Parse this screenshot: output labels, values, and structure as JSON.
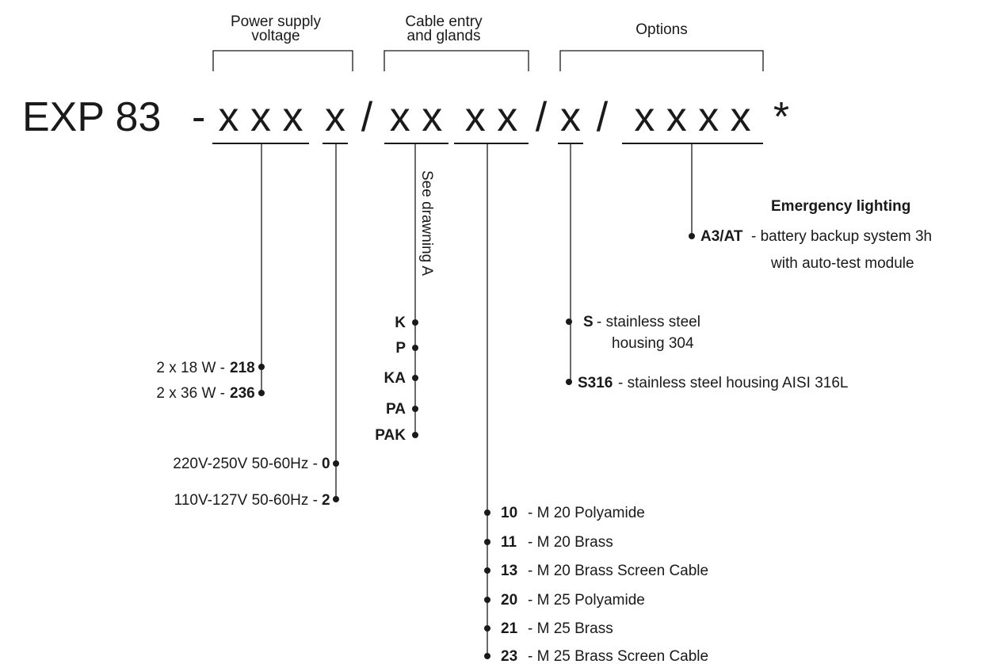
{
  "groups": [
    {
      "label": [
        "Power supply",
        "voltage"
      ]
    },
    {
      "label": [
        "Cable entry",
        "and glands"
      ]
    },
    {
      "label": [
        "Options"
      ]
    }
  ],
  "code": [
    "EXP 83",
    "-",
    "x x x",
    "x",
    "/",
    "x x",
    "x x",
    "/",
    "x",
    "/",
    "x x x x",
    "*"
  ],
  "power": [
    {
      "label": "2 x 18 W -",
      "code": "218"
    },
    {
      "label": "2 x 36 W -",
      "code": "236"
    }
  ],
  "voltage": [
    {
      "label": "220V-250V 50-60Hz -",
      "code": "0"
    },
    {
      "label": "110V-127V 50-60Hz -",
      "code": "2"
    }
  ],
  "cable_entry": {
    "note": "See drawning A",
    "codes": [
      "K",
      "P",
      "KA",
      "PA",
      "PAK"
    ]
  },
  "glands": [
    {
      "code": "10",
      "label": "- M 20 Polyamide"
    },
    {
      "code": "11",
      "label": "- M 20 Brass"
    },
    {
      "code": "13",
      "label": "- M 20 Brass Screen Cable"
    },
    {
      "code": "20",
      "label": "- M 25 Polyamide"
    },
    {
      "code": "21",
      "label": "- M 25 Brass"
    },
    {
      "code": "23",
      "label": "- M 25 Brass Screen Cable"
    }
  ],
  "housing": [
    {
      "code": "S",
      "label": [
        "- stainless steel",
        "housing 304"
      ]
    },
    {
      "code": "S316",
      "label": [
        "- stainless steel housing AISI 316L"
      ]
    }
  ],
  "emergency": {
    "title": "Emergency lighting",
    "code": "A3/AT",
    "label": [
      "- battery backup system 3h",
      "with auto-test module"
    ]
  }
}
